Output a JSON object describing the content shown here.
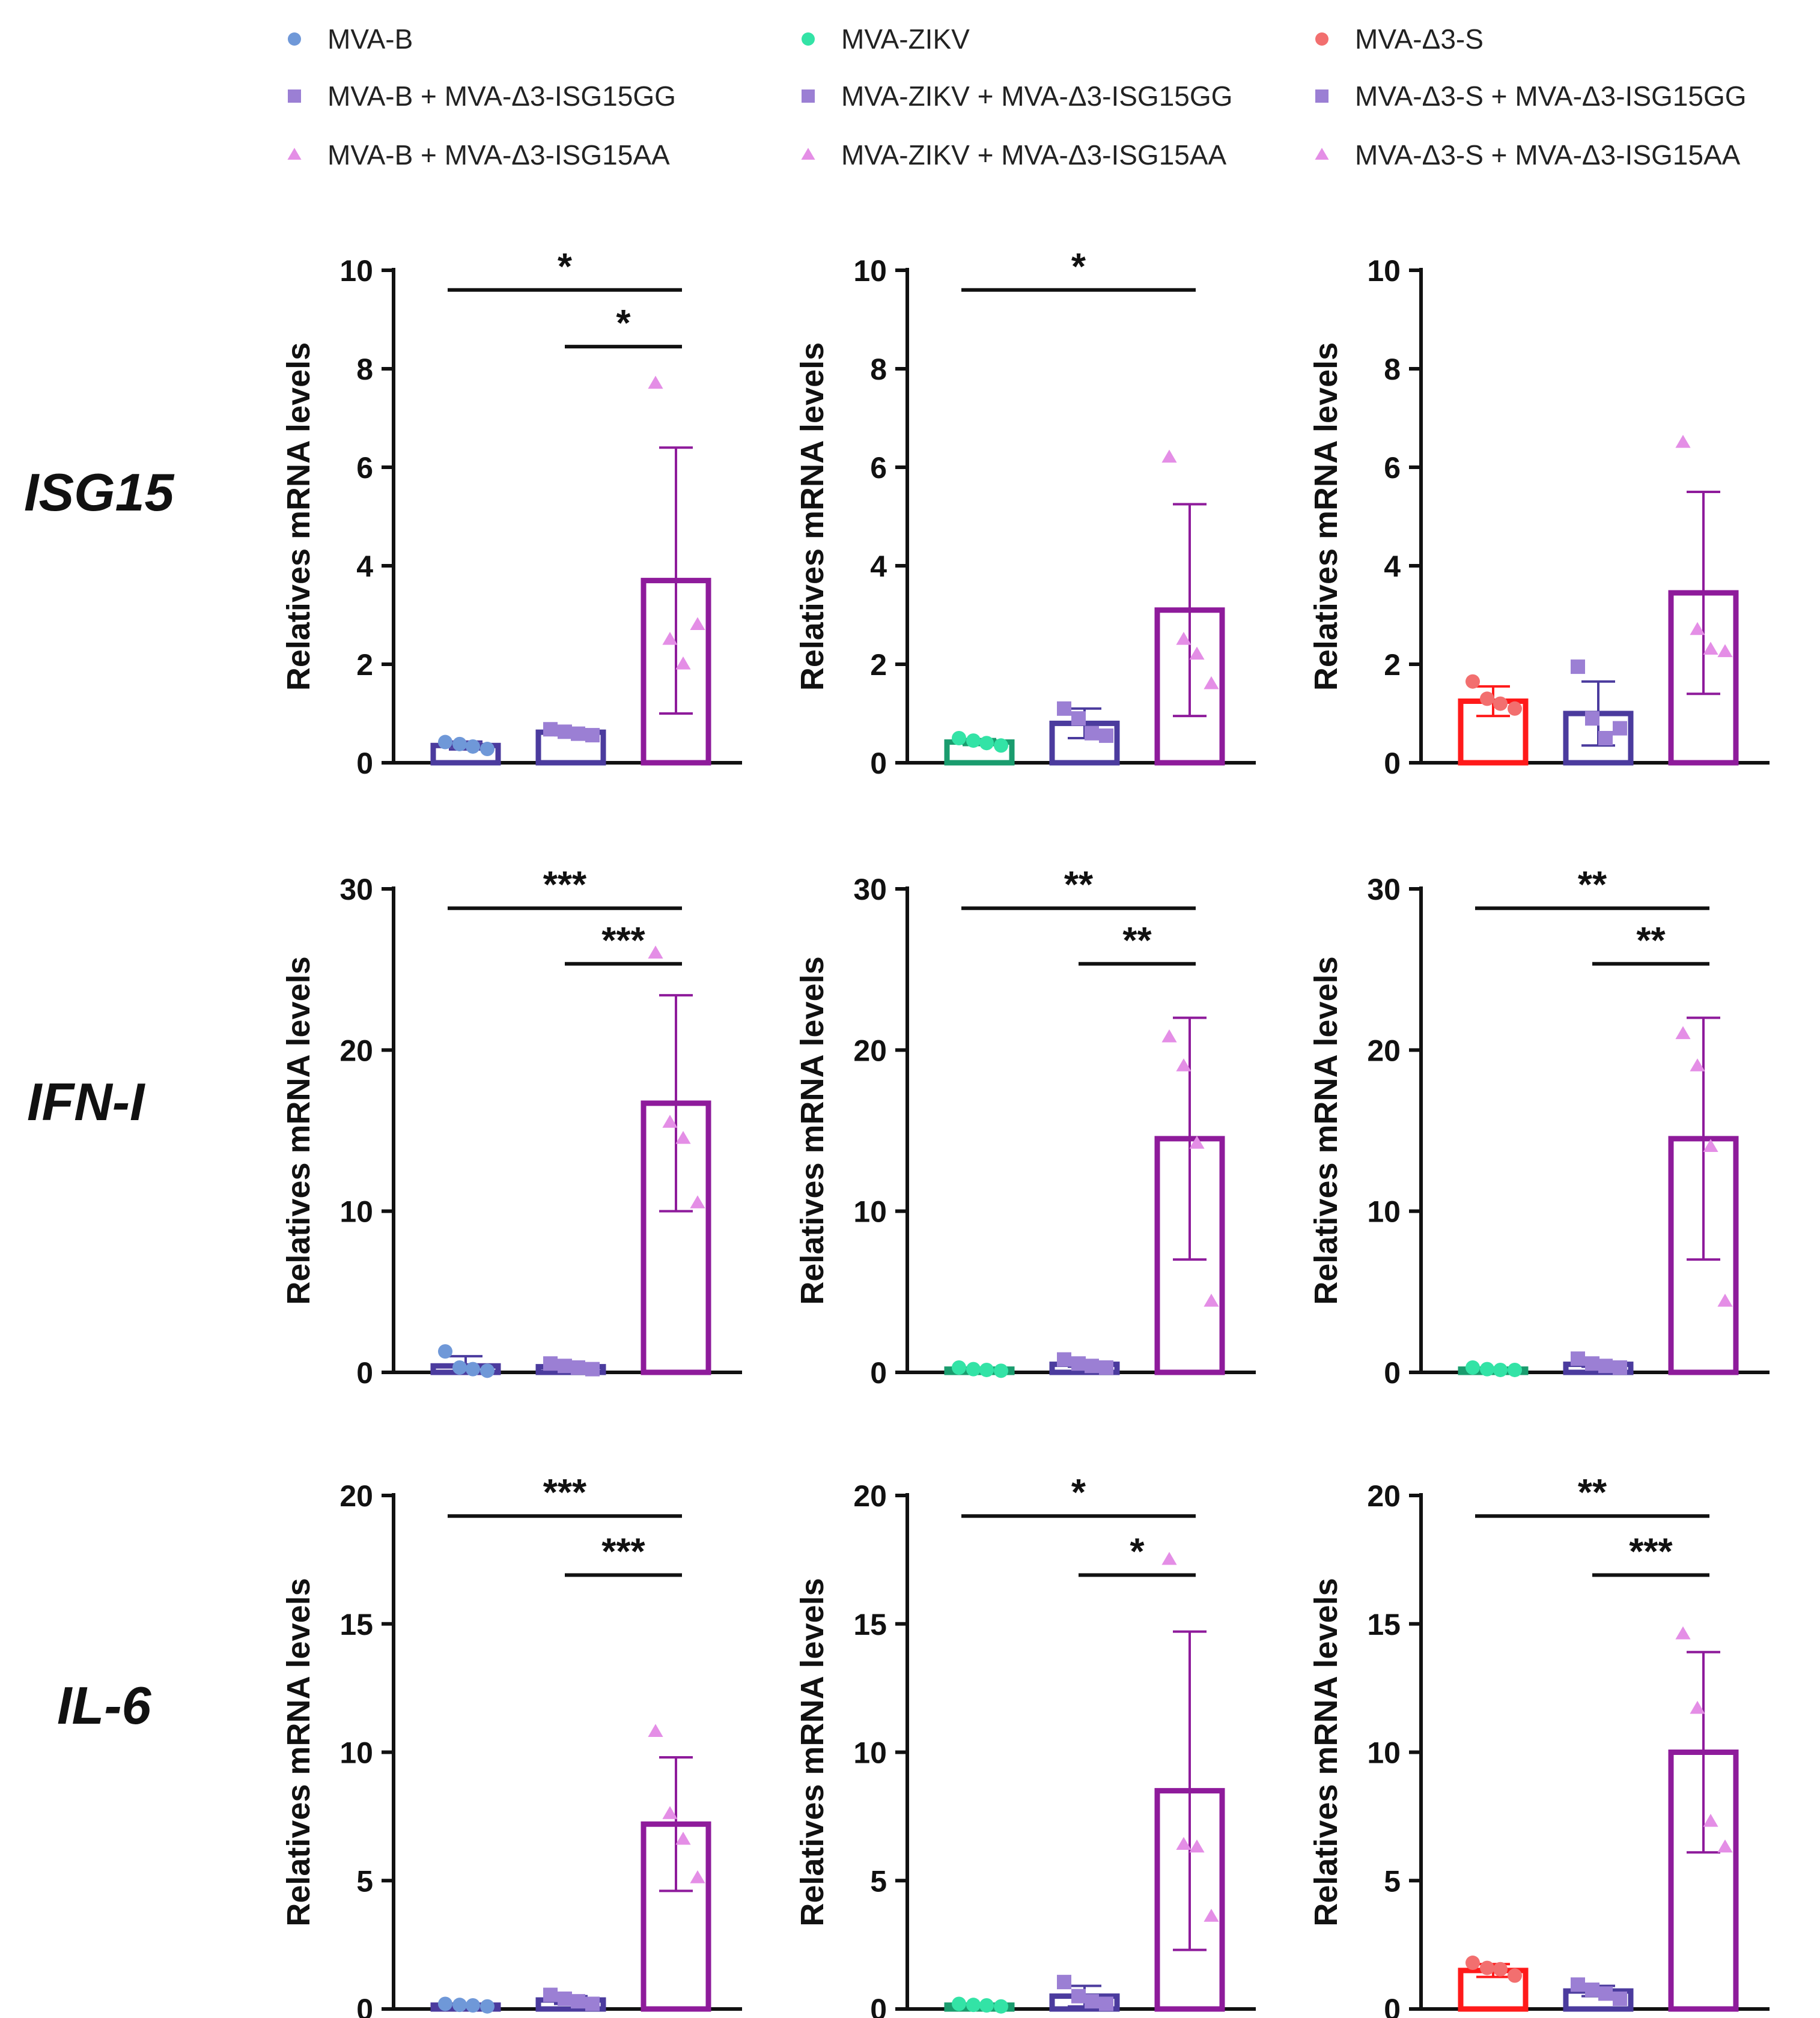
{
  "legend": [
    {
      "label": "MVA-B",
      "color": "#6f98d8",
      "marker": "circle"
    },
    {
      "label": "MVA-ZIKV",
      "color": "#33e3a6",
      "marker": "circle"
    },
    {
      "label": "MVA-Δ3-S",
      "color": "#f26f6f",
      "marker": "circle"
    },
    {
      "label": "MVA-B + MVA-Δ3-ISG15GG",
      "color": "#9b7fd4",
      "marker": "square"
    },
    {
      "label": "MVA-ZIKV + MVA-Δ3-ISG15GG",
      "color": "#9b7fd4",
      "marker": "square"
    },
    {
      "label": "MVA-Δ3-S + MVA-Δ3-ISG15GG",
      "color": "#9b7fd4",
      "marker": "square"
    },
    {
      "label": "MVA-B + MVA-Δ3-ISG15AA",
      "color": "#e48ee6",
      "marker": "triangle"
    },
    {
      "label": "MVA-ZIKV + MVA-Δ3-ISG15AA",
      "color": "#e48ee6",
      "marker": "triangle"
    },
    {
      "label": "MVA-Δ3-S + MVA-Δ3-ISG15AA",
      "color": "#e48ee6",
      "marker": "triangle"
    }
  ],
  "rows": [
    {
      "label": "ISG15"
    },
    {
      "label": "IFN-I"
    },
    {
      "label": "IL-6"
    }
  ],
  "colors": {
    "bar_edge": [
      "#4b3b9e",
      "#4b3b9e",
      "#8e1b9b"
    ],
    "bar_edge_first": {
      "MVA-B": "#4b3b9e",
      "MVA-ZIKV": "#1a9c6e",
      "MVA-Δ3-S": "#ff1a1a"
    }
  },
  "chart_data": [
    {
      "type": "bar",
      "row": "ISG15",
      "col": "MVA-B",
      "ylabel": "Relatives mRNA levels",
      "ylim": [
        0,
        10
      ],
      "yticks": [
        "0",
        "2",
        "4",
        "6",
        "8",
        "10"
      ],
      "bars": [
        {
          "mean": 0.35,
          "sd": 0.08,
          "points": [
            0.42,
            0.38,
            0.33,
            0.28
          ],
          "color": "#6f98d8",
          "edge": "#4b3b9e",
          "marker": "circle"
        },
        {
          "mean": 0.62,
          "sd": 0.06,
          "points": [
            0.68,
            0.63,
            0.59,
            0.56
          ],
          "color": "#9b7fd4",
          "edge": "#4b3b9e",
          "marker": "square"
        },
        {
          "mean": 3.7,
          "sd": 2.7,
          "points": [
            7.7,
            2.5,
            2.0,
            2.8
          ],
          "color": "#e48ee6",
          "edge": "#8e1b9b",
          "marker": "triangle"
        }
      ],
      "significance": [
        {
          "from": 0,
          "to": 2,
          "label": "*"
        },
        {
          "from": 1,
          "to": 2,
          "label": "*"
        }
      ]
    },
    {
      "type": "bar",
      "row": "ISG15",
      "col": "MVA-ZIKV",
      "ylabel": "Relatives mRNA levels",
      "ylim": [
        0,
        10
      ],
      "yticks": [
        "0",
        "2",
        "4",
        "6",
        "8",
        "10"
      ],
      "bars": [
        {
          "mean": 0.42,
          "sd": 0.06,
          "points": [
            0.5,
            0.45,
            0.4,
            0.35
          ],
          "color": "#33e3a6",
          "edge": "#1a9c6e",
          "marker": "circle"
        },
        {
          "mean": 0.8,
          "sd": 0.3,
          "points": [
            1.1,
            0.9,
            0.6,
            0.55
          ],
          "color": "#9b7fd4",
          "edge": "#4b3b9e",
          "marker": "square"
        },
        {
          "mean": 3.1,
          "sd": 2.15,
          "points": [
            6.2,
            2.5,
            2.2,
            1.6
          ],
          "color": "#e48ee6",
          "edge": "#8e1b9b",
          "marker": "triangle"
        }
      ],
      "significance": [
        {
          "from": 0,
          "to": 2,
          "label": "*"
        }
      ]
    },
    {
      "type": "bar",
      "row": "ISG15",
      "col": "MVA-Δ3-S",
      "ylabel": "Relatives mRNA levels",
      "ylim": [
        0,
        10
      ],
      "yticks": [
        "0",
        "2",
        "4",
        "6",
        "8",
        "10"
      ],
      "bars": [
        {
          "mean": 1.25,
          "sd": 0.3,
          "points": [
            1.65,
            1.3,
            1.2,
            1.1
          ],
          "color": "#f26f6f",
          "edge": "#ff1a1a",
          "marker": "circle"
        },
        {
          "mean": 1.0,
          "sd": 0.65,
          "points": [
            1.95,
            0.9,
            0.5,
            0.7
          ],
          "color": "#9b7fd4",
          "edge": "#4b3b9e",
          "marker": "square"
        },
        {
          "mean": 3.45,
          "sd": 2.05,
          "points": [
            6.5,
            2.7,
            2.3,
            2.25
          ],
          "color": "#e48ee6",
          "edge": "#8e1b9b",
          "marker": "triangle"
        }
      ],
      "significance": []
    },
    {
      "type": "bar",
      "row": "IFN-I",
      "col": "MVA-B",
      "ylabel": "Relatives mRNA levels",
      "ylim": [
        0,
        30
      ],
      "yticks": [
        "0",
        "10",
        "20",
        "30"
      ],
      "bars": [
        {
          "mean": 0.4,
          "sd": 0.6,
          "points": [
            1.3,
            0.3,
            0.2,
            0.1
          ],
          "color": "#6f98d8",
          "edge": "#4b3b9e",
          "marker": "circle"
        },
        {
          "mean": 0.35,
          "sd": 0.15,
          "points": [
            0.55,
            0.4,
            0.3,
            0.2
          ],
          "color": "#9b7fd4",
          "edge": "#4b3b9e",
          "marker": "square"
        },
        {
          "mean": 16.7,
          "sd": 6.7,
          "points": [
            26.0,
            15.5,
            14.5,
            10.5
          ],
          "color": "#e48ee6",
          "edge": "#8e1b9b",
          "marker": "triangle"
        }
      ],
      "significance": [
        {
          "from": 0,
          "to": 2,
          "label": "***"
        },
        {
          "from": 1,
          "to": 2,
          "label": "***"
        }
      ]
    },
    {
      "type": "bar",
      "row": "IFN-I",
      "col": "MVA-ZIKV",
      "ylabel": "Relatives mRNA levels",
      "ylim": [
        0,
        30
      ],
      "yticks": [
        "0",
        "10",
        "20",
        "30"
      ],
      "bars": [
        {
          "mean": 0.2,
          "sd": 0.05,
          "points": [
            0.3,
            0.2,
            0.15,
            0.1
          ],
          "color": "#33e3a6",
          "edge": "#1a9c6e",
          "marker": "circle"
        },
        {
          "mean": 0.5,
          "sd": 0.15,
          "points": [
            0.8,
            0.55,
            0.4,
            0.3
          ],
          "color": "#9b7fd4",
          "edge": "#4b3b9e",
          "marker": "square"
        },
        {
          "mean": 14.5,
          "sd": 7.5,
          "points": [
            20.8,
            19.0,
            14.2,
            4.4
          ],
          "color": "#e48ee6",
          "edge": "#8e1b9b",
          "marker": "triangle"
        }
      ],
      "significance": [
        {
          "from": 0,
          "to": 2,
          "label": "**"
        },
        {
          "from": 1,
          "to": 2,
          "label": "**"
        }
      ]
    },
    {
      "type": "bar",
      "row": "IFN-I",
      "col": "MVA-Δ3-S",
      "ylabel": "Relatives mRNA levels",
      "ylim": [
        0,
        30
      ],
      "yticks": [
        "0",
        "10",
        "20",
        "30"
      ],
      "bars": [
        {
          "mean": 0.2,
          "sd": 0.05,
          "points": [
            0.3,
            0.2,
            0.15,
            0.15
          ],
          "color": "#33e3a6",
          "edge": "#1a9c6e",
          "marker": "circle"
        },
        {
          "mean": 0.5,
          "sd": 0.15,
          "points": [
            0.85,
            0.55,
            0.4,
            0.3
          ],
          "color": "#9b7fd4",
          "edge": "#4b3b9e",
          "marker": "square"
        },
        {
          "mean": 14.5,
          "sd": 7.5,
          "points": [
            21.0,
            19.0,
            14.0,
            4.4
          ],
          "color": "#e48ee6",
          "edge": "#8e1b9b",
          "marker": "triangle"
        }
      ],
      "significance": [
        {
          "from": 0,
          "to": 2,
          "label": "**"
        },
        {
          "from": 1,
          "to": 2,
          "label": "**"
        }
      ]
    },
    {
      "type": "bar",
      "row": "IL-6",
      "col": "MVA-B",
      "ylabel": "Relatives mRNA levels",
      "ylim": [
        0,
        20
      ],
      "yticks": [
        "0",
        "5",
        "10",
        "15",
        "20"
      ],
      "bars": [
        {
          "mean": 0.15,
          "sd": 0.04,
          "points": [
            0.2,
            0.16,
            0.14,
            0.1
          ],
          "color": "#6f98d8",
          "edge": "#4b3b9e",
          "marker": "circle"
        },
        {
          "mean": 0.35,
          "sd": 0.15,
          "points": [
            0.55,
            0.4,
            0.3,
            0.2
          ],
          "color": "#9b7fd4",
          "edge": "#4b3b9e",
          "marker": "square"
        },
        {
          "mean": 7.2,
          "sd": 2.6,
          "points": [
            10.8,
            7.6,
            6.6,
            5.1
          ],
          "color": "#e48ee6",
          "edge": "#8e1b9b",
          "marker": "triangle"
        }
      ],
      "significance": [
        {
          "from": 0,
          "to": 2,
          "label": "***"
        },
        {
          "from": 1,
          "to": 2,
          "label": "***"
        }
      ]
    },
    {
      "type": "bar",
      "row": "IL-6",
      "col": "MVA-ZIKV",
      "ylabel": "Relatives mRNA levels",
      "ylim": [
        0,
        20
      ],
      "yticks": [
        "0",
        "5",
        "10",
        "15",
        "20"
      ],
      "bars": [
        {
          "mean": 0.15,
          "sd": 0.04,
          "points": [
            0.2,
            0.16,
            0.14,
            0.1
          ],
          "color": "#33e3a6",
          "edge": "#1a9c6e",
          "marker": "circle"
        },
        {
          "mean": 0.5,
          "sd": 0.4,
          "points": [
            1.05,
            0.5,
            0.3,
            0.2
          ],
          "color": "#9b7fd4",
          "edge": "#4b3b9e",
          "marker": "square"
        },
        {
          "mean": 8.5,
          "sd": 6.2,
          "points": [
            17.5,
            6.4,
            6.3,
            3.6
          ],
          "color": "#e48ee6",
          "edge": "#8e1b9b",
          "marker": "triangle"
        }
      ],
      "significance": [
        {
          "from": 0,
          "to": 2,
          "label": "*"
        },
        {
          "from": 1,
          "to": 2,
          "label": "*"
        }
      ]
    },
    {
      "type": "bar",
      "row": "IL-6",
      "col": "MVA-Δ3-S",
      "ylabel": "Relatives mRNA levels",
      "ylim": [
        0,
        20
      ],
      "yticks": [
        "0",
        "5",
        "10",
        "15",
        "20"
      ],
      "bars": [
        {
          "mean": 1.5,
          "sd": 0.25,
          "points": [
            1.8,
            1.6,
            1.55,
            1.3
          ],
          "color": "#f26f6f",
          "edge": "#ff1a1a",
          "marker": "circle"
        },
        {
          "mean": 0.7,
          "sd": 0.2,
          "points": [
            0.95,
            0.75,
            0.6,
            0.4
          ],
          "color": "#9b7fd4",
          "edge": "#4b3b9e",
          "marker": "square"
        },
        {
          "mean": 10.0,
          "sd": 3.9,
          "points": [
            14.6,
            11.7,
            7.3,
            6.3
          ],
          "color": "#e48ee6",
          "edge": "#8e1b9b",
          "marker": "triangle"
        }
      ],
      "significance": [
        {
          "from": 0,
          "to": 2,
          "label": "**"
        },
        {
          "from": 1,
          "to": 2,
          "label": "***"
        }
      ]
    }
  ]
}
